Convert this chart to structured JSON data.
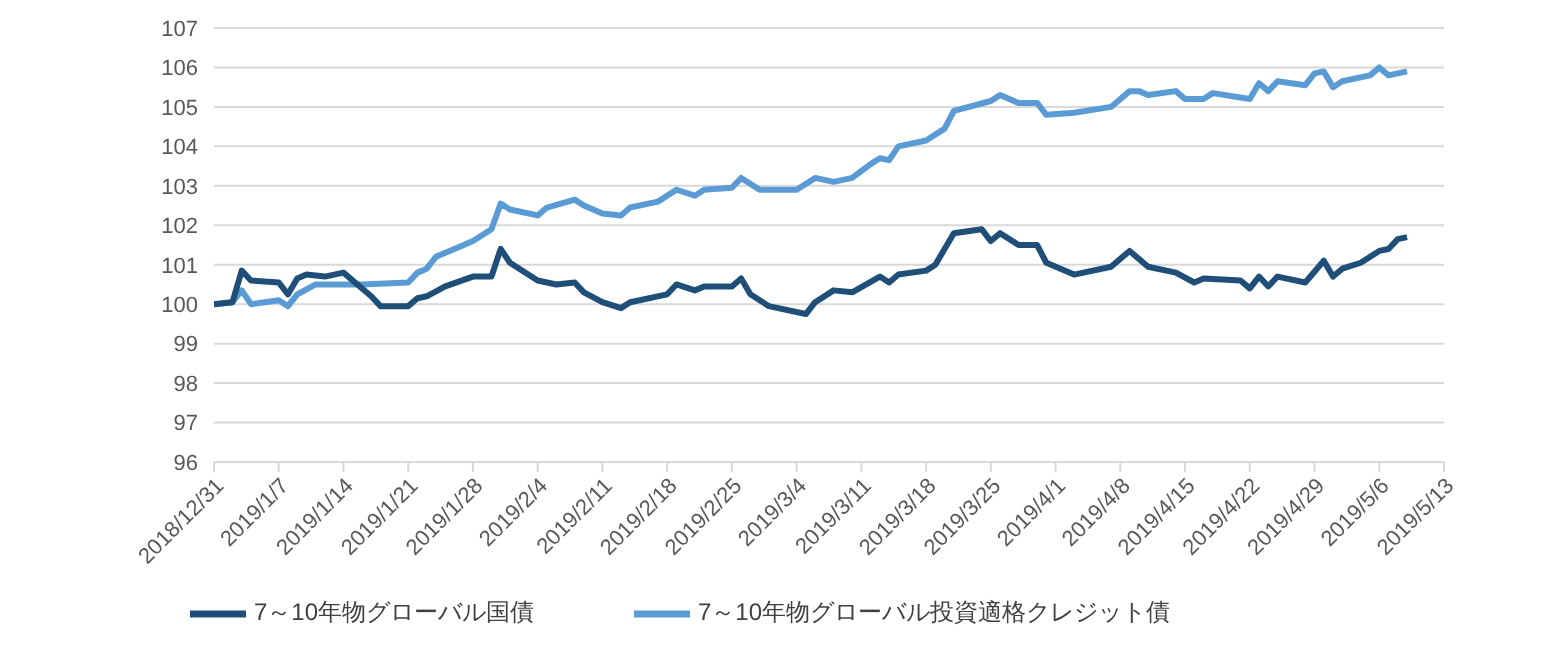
{
  "chart_data": {
    "type": "line",
    "ylim": [
      96,
      107
    ],
    "yticks": [
      96,
      97,
      98,
      99,
      100,
      101,
      102,
      103,
      104,
      105,
      106,
      107
    ],
    "xlim": [
      "2018-12-31",
      "2019-05-13"
    ],
    "xticks": [
      {
        "value": "2018-12-31",
        "label": "2018/12/31"
      },
      {
        "value": "2019-01-07",
        "label": "2019/1/7"
      },
      {
        "value": "2019-01-14",
        "label": "2019/1/14"
      },
      {
        "value": "2019-01-21",
        "label": "2019/1/21"
      },
      {
        "value": "2019-01-28",
        "label": "2019/1/28"
      },
      {
        "value": "2019-02-04",
        "label": "2019/2/4"
      },
      {
        "value": "2019-02-11",
        "label": "2019/2/11"
      },
      {
        "value": "2019-02-18",
        "label": "2019/2/18"
      },
      {
        "value": "2019-02-25",
        "label": "2019/2/25"
      },
      {
        "value": "2019-03-04",
        "label": "2019/3/4"
      },
      {
        "value": "2019-03-11",
        "label": "2019/3/11"
      },
      {
        "value": "2019-03-18",
        "label": "2019/3/18"
      },
      {
        "value": "2019-03-25",
        "label": "2019/3/25"
      },
      {
        "value": "2019-04-01",
        "label": "2019/4/1"
      },
      {
        "value": "2019-04-08",
        "label": "2019/4/8"
      },
      {
        "value": "2019-04-15",
        "label": "2019/4/15"
      },
      {
        "value": "2019-04-22",
        "label": "2019/4/22"
      },
      {
        "value": "2019-04-29",
        "label": "2019/4/29"
      },
      {
        "value": "2019-05-06",
        "label": "2019/5/6"
      },
      {
        "value": "2019-05-13",
        "label": "2019/5/13"
      }
    ],
    "grid": "y",
    "legend": "bottom",
    "marker": "none",
    "line_style": "solid",
    "series": [
      {
        "name": "7～10年物グローバル投資適格クレジット債",
        "color": "#5b9bd5",
        "x": [
          "2018-12-31",
          "2019-01-02",
          "2019-01-03",
          "2019-01-04",
          "2019-01-07",
          "2019-01-08",
          "2019-01-09",
          "2019-01-11",
          "2019-01-16",
          "2019-01-21",
          "2019-01-22",
          "2019-01-23",
          "2019-01-24",
          "2019-01-26",
          "2019-01-28",
          "2019-01-30",
          "2019-01-31",
          "2019-02-01",
          "2019-02-04",
          "2019-02-05",
          "2019-02-08",
          "2019-02-09",
          "2019-02-11",
          "2019-02-13",
          "2019-02-14",
          "2019-02-17",
          "2019-02-19",
          "2019-02-21",
          "2019-02-22",
          "2019-02-25",
          "2019-02-26",
          "2019-02-28",
          "2019-03-04",
          "2019-03-06",
          "2019-03-08",
          "2019-03-10",
          "2019-03-12",
          "2019-03-13",
          "2019-03-14",
          "2019-03-15",
          "2019-03-18",
          "2019-03-20",
          "2019-03-21",
          "2019-03-25",
          "2019-03-26",
          "2019-03-28",
          "2019-03-30",
          "2019-03-31",
          "2019-04-03",
          "2019-04-07",
          "2019-04-09",
          "2019-04-10",
          "2019-04-11",
          "2019-04-14",
          "2019-04-15",
          "2019-04-17",
          "2019-04-18",
          "2019-04-22",
          "2019-04-23",
          "2019-04-24",
          "2019-04-25",
          "2019-04-28",
          "2019-04-29",
          "2019-04-30",
          "2019-05-01",
          "2019-05-02",
          "2019-05-05",
          "2019-05-06",
          "2019-05-07",
          "2019-05-09"
        ],
        "values": [
          100.0,
          100.05,
          100.35,
          100.0,
          100.1,
          99.95,
          100.25,
          100.5,
          100.5,
          100.55,
          100.8,
          100.9,
          101.2,
          101.4,
          101.6,
          101.9,
          102.55,
          102.4,
          102.25,
          102.45,
          102.65,
          102.5,
          102.3,
          102.25,
          102.45,
          102.6,
          102.9,
          102.75,
          102.9,
          102.95,
          103.2,
          102.9,
          102.9,
          103.2,
          103.1,
          103.2,
          103.55,
          103.7,
          103.65,
          104.0,
          104.15,
          104.45,
          104.9,
          105.15,
          105.3,
          105.1,
          105.1,
          104.8,
          104.85,
          105.0,
          105.4,
          105.4,
          105.3,
          105.4,
          105.2,
          105.2,
          105.35,
          105.2,
          105.6,
          105.4,
          105.65,
          105.55,
          105.85,
          105.9,
          105.5,
          105.65,
          105.8,
          106.0,
          105.8,
          105.9
        ]
      },
      {
        "name": "7～10年物グローバル国債",
        "color": "#1f4e79",
        "x": [
          "2018-12-31",
          "2019-01-02",
          "2019-01-03",
          "2019-01-04",
          "2019-01-07",
          "2019-01-08",
          "2019-01-09",
          "2019-01-10",
          "2019-01-12",
          "2019-01-14",
          "2019-01-15",
          "2019-01-17",
          "2019-01-18",
          "2019-01-21",
          "2019-01-22",
          "2019-01-23",
          "2019-01-25",
          "2019-01-28",
          "2019-01-30",
          "2019-01-31",
          "2019-02-01",
          "2019-02-04",
          "2019-02-06",
          "2019-02-08",
          "2019-02-09",
          "2019-02-11",
          "2019-02-13",
          "2019-02-14",
          "2019-02-18",
          "2019-02-19",
          "2019-02-21",
          "2019-02-22",
          "2019-02-25",
          "2019-02-26",
          "2019-02-27",
          "2019-03-01",
          "2019-03-05",
          "2019-03-06",
          "2019-03-08",
          "2019-03-10",
          "2019-03-13",
          "2019-03-14",
          "2019-03-15",
          "2019-03-18",
          "2019-03-19",
          "2019-03-21",
          "2019-03-24",
          "2019-03-25",
          "2019-03-26",
          "2019-03-28",
          "2019-03-30",
          "2019-03-31",
          "2019-04-03",
          "2019-04-07",
          "2019-04-09",
          "2019-04-11",
          "2019-04-14",
          "2019-04-16",
          "2019-04-17",
          "2019-04-21",
          "2019-04-22",
          "2019-04-23",
          "2019-04-24",
          "2019-04-25",
          "2019-04-28",
          "2019-04-30",
          "2019-05-01",
          "2019-05-02",
          "2019-05-04",
          "2019-05-06",
          "2019-05-07",
          "2019-05-08",
          "2019-05-09"
        ],
        "values": [
          100.0,
          100.05,
          100.85,
          100.6,
          100.55,
          100.25,
          100.65,
          100.75,
          100.7,
          100.8,
          100.6,
          100.2,
          99.95,
          99.95,
          100.15,
          100.2,
          100.45,
          100.7,
          100.7,
          101.4,
          101.05,
          100.6,
          100.5,
          100.55,
          100.3,
          100.05,
          99.9,
          100.05,
          100.25,
          100.5,
          100.35,
          100.45,
          100.45,
          100.65,
          100.25,
          99.95,
          99.75,
          100.05,
          100.35,
          100.3,
          100.7,
          100.55,
          100.75,
          100.85,
          101.0,
          101.8,
          101.9,
          101.6,
          101.8,
          101.5,
          101.5,
          101.05,
          100.75,
          100.95,
          101.35,
          100.95,
          100.8,
          100.55,
          100.65,
          100.6,
          100.4,
          100.7,
          100.45,
          100.7,
          100.55,
          101.1,
          100.7,
          100.9,
          101.05,
          101.35,
          101.4,
          101.65,
          101.7
        ]
      }
    ]
  }
}
